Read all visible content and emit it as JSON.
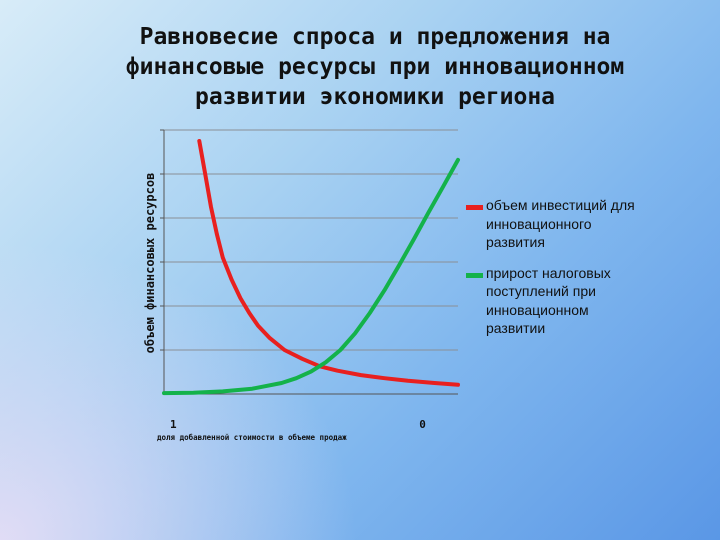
{
  "title_lines": [
    "Равновесие спроса и предложения на",
    "финансовые ресурсы при инновационном",
    "развитии экономики региона"
  ],
  "colors": {
    "red": "#e8201f",
    "green": "#14b24a",
    "grid": "#8a8f96",
    "axis": "#555555"
  },
  "chart_data": {
    "type": "line",
    "title": "Равновесие спроса и предложения на финансовые ресурсы при инновационном развитии экономики региона",
    "xlabel": "доля добавленной стоимости в объеме продаж",
    "ylabel": "объем финансовых ресурсов",
    "x_tick_labels": [
      "1",
      "0"
    ],
    "xlim": [
      1,
      0
    ],
    "ylim": [
      0,
      6
    ],
    "grid": true,
    "legend_position": "right",
    "series": [
      {
        "name": "объем инвестиций для инновационного развития",
        "color": "#e8201f",
        "x": [
          0.88,
          0.86,
          0.84,
          0.82,
          0.8,
          0.77,
          0.74,
          0.71,
          0.68,
          0.64,
          0.59,
          0.53,
          0.47,
          0.41,
          0.33,
          0.25,
          0.17,
          0.08,
          0.0
        ],
        "y": [
          5.75,
          5.0,
          4.25,
          3.63,
          3.1,
          2.6,
          2.18,
          1.84,
          1.55,
          1.27,
          1.0,
          0.8,
          0.63,
          0.53,
          0.43,
          0.36,
          0.3,
          0.25,
          0.21
        ]
      },
      {
        "name": "прирост налоговых поступлений при инновационном развитии",
        "color": "#14b24a",
        "x": [
          1.0,
          0.9,
          0.8,
          0.7,
          0.6,
          0.55,
          0.5,
          0.45,
          0.4,
          0.35,
          0.3,
          0.25,
          0.2,
          0.15,
          0.1,
          0.05,
          0.0
        ],
        "y": [
          0.02,
          0.03,
          0.06,
          0.12,
          0.25,
          0.36,
          0.51,
          0.72,
          1.0,
          1.38,
          1.84,
          2.36,
          2.93,
          3.52,
          4.13,
          4.72,
          5.32
        ]
      }
    ]
  }
}
